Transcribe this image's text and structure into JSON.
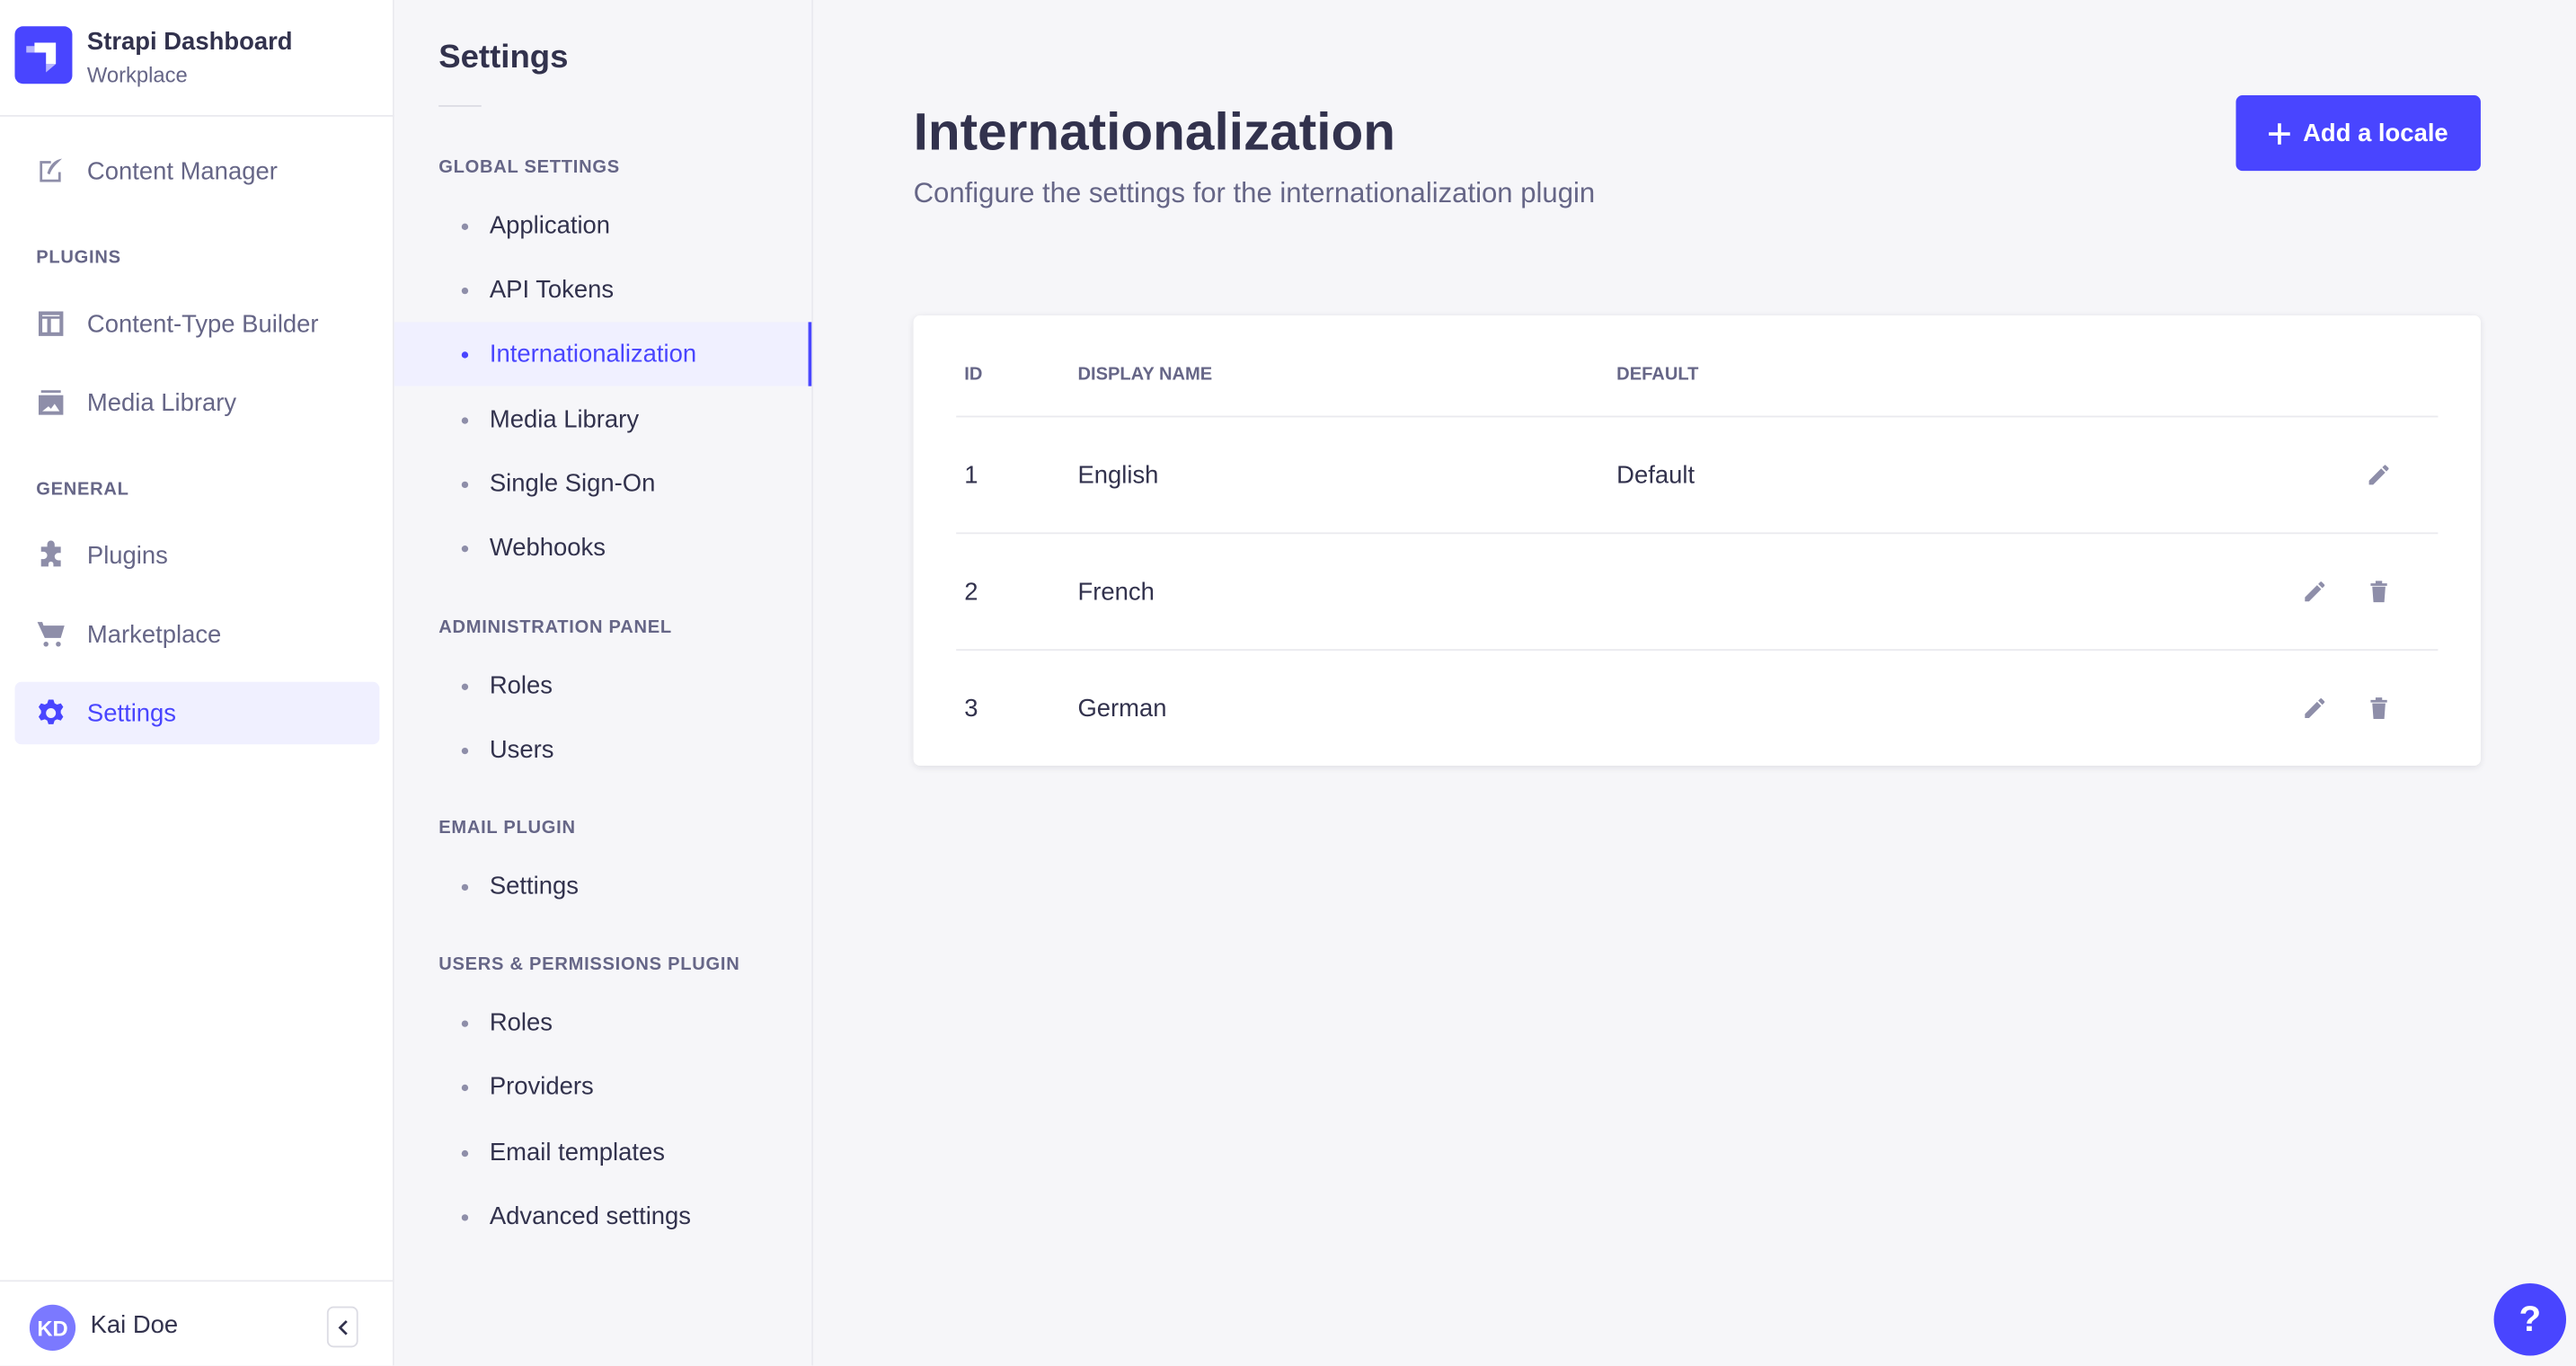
{
  "app": {
    "title": "Strapi Dashboard",
    "subtitle": "Workplace",
    "logo_color": "#4945ff"
  },
  "nav": {
    "content_manager": "Content Manager",
    "plugins_label": "PLUGINS",
    "content_type_builder": "Content-Type Builder",
    "media_library": "Media Library",
    "general_label": "GENERAL",
    "plugins": "Plugins",
    "marketplace": "Marketplace",
    "settings": "Settings"
  },
  "user": {
    "initials": "KD",
    "name": "Kai Doe"
  },
  "settings_nav": {
    "title": "Settings",
    "sections": [
      {
        "label": "GLOBAL SETTINGS",
        "items": [
          "Application",
          "API Tokens",
          "Internationalization",
          "Media Library",
          "Single Sign-On",
          "Webhooks"
        ]
      },
      {
        "label": "ADMINISTRATION PANEL",
        "items": [
          "Roles",
          "Users"
        ]
      },
      {
        "label": "EMAIL PLUGIN",
        "items": [
          "Settings"
        ]
      },
      {
        "label": "USERS & PERMISSIONS PLUGIN",
        "items": [
          "Roles",
          "Providers",
          "Email templates",
          "Advanced settings"
        ]
      }
    ],
    "active": "Internationalization"
  },
  "main": {
    "title": "Internationalization",
    "subtitle": "Configure the settings for the internationalization plugin",
    "add_button": "Add a locale",
    "accent": "#4945ff",
    "table": {
      "headers": [
        "ID",
        "DISPLAY NAME",
        "DEFAULT"
      ],
      "rows": [
        {
          "id": "1",
          "name": "English",
          "default": "Default"
        },
        {
          "id": "2",
          "name": "French",
          "default": ""
        },
        {
          "id": "3",
          "name": "German",
          "default": ""
        }
      ]
    }
  },
  "help": "?"
}
